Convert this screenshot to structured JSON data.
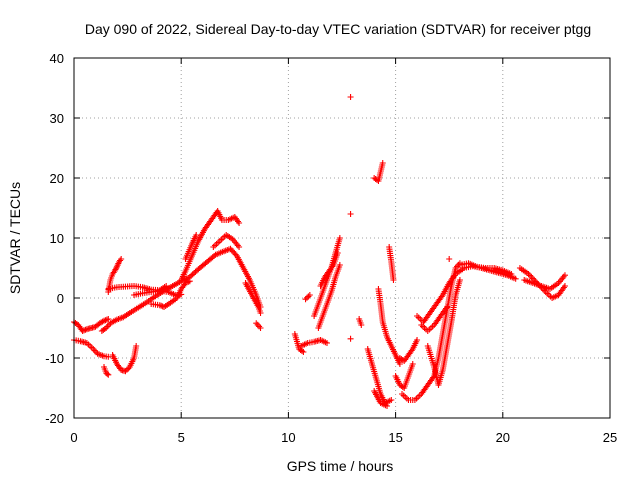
{
  "chart_data": {
    "type": "scatter",
    "title": "Day 090 of 2022, Sidereal Day-to-day VTEC variation (SDTVAR) for receiver ptgg",
    "xlabel": "GPS time / hours",
    "ylabel": "SDTVAR / TECUs",
    "xlim": [
      0,
      25
    ],
    "ylim": [
      -20,
      40
    ],
    "xticks": [
      "0",
      "5",
      "10",
      "15",
      "20",
      "25"
    ],
    "yticks": [
      "-20",
      "-10",
      "0",
      "10",
      "20",
      "30",
      "40"
    ],
    "grid": true,
    "marker": "+",
    "color": "#ff0000",
    "segments": [
      [
        [
          0.0,
          -4
        ],
        [
          0.2,
          -4.5
        ],
        [
          0.4,
          -5.5
        ],
        [
          0.6,
          -5.2
        ],
        [
          0.8,
          -5
        ],
        [
          1.0,
          -4.8
        ],
        [
          1.2,
          -4.2
        ],
        [
          1.4,
          -3.8
        ],
        [
          1.6,
          -3.5
        ]
      ],
      [
        [
          0.0,
          -7
        ],
        [
          0.3,
          -7.2
        ],
        [
          0.6,
          -7.5
        ],
        [
          0.9,
          -8.5
        ],
        [
          1.1,
          -9.3
        ],
        [
          1.4,
          -9.7
        ],
        [
          1.6,
          -9.8
        ]
      ],
      [
        [
          1.4,
          -11.5
        ],
        [
          1.5,
          -12.5
        ],
        [
          1.6,
          -12.8
        ]
      ],
      [
        [
          1.3,
          -5.5
        ],
        [
          1.5,
          -5.0
        ],
        [
          1.7,
          -4.2
        ],
        [
          2.0,
          -3.6
        ],
        [
          2.3,
          -3.2
        ],
        [
          2.6,
          -2.5
        ],
        [
          3.0,
          -1.6
        ],
        [
          3.4,
          -0.7
        ],
        [
          3.8,
          0.3
        ],
        [
          4.2,
          1.2
        ],
        [
          4.6,
          2.0
        ],
        [
          5.0,
          2.8
        ],
        [
          5.4,
          3.5
        ],
        [
          5.8,
          4.8
        ],
        [
          6.2,
          6.0
        ],
        [
          6.6,
          7.2
        ],
        [
          7.0,
          7.8
        ],
        [
          7.3,
          8.2
        ],
        [
          7.6,
          7.0
        ],
        [
          7.9,
          5.0
        ],
        [
          8.2,
          3.0
        ],
        [
          8.5,
          0.5
        ],
        [
          8.7,
          -1.5
        ]
      ],
      [
        [
          1.6,
          1.5
        ],
        [
          2.0,
          1.8
        ],
        [
          2.4,
          1.9
        ],
        [
          2.8,
          2.0
        ],
        [
          3.2,
          1.8
        ],
        [
          3.6,
          1.4
        ],
        [
          4.0,
          1.3
        ],
        [
          4.3,
          2.0
        ]
      ],
      [
        [
          1.6,
          1.0
        ],
        [
          1.7,
          3.0
        ],
        [
          1.8,
          4.0
        ],
        [
          1.9,
          4.5
        ],
        [
          2.0,
          5.2
        ],
        [
          2.1,
          6.0
        ],
        [
          2.2,
          6.5
        ]
      ],
      [
        [
          1.8,
          -9.5
        ],
        [
          2.0,
          -11.0
        ],
        [
          2.2,
          -12.0
        ],
        [
          2.4,
          -12.2
        ],
        [
          2.6,
          -11.5
        ],
        [
          2.8,
          -10.0
        ],
        [
          2.9,
          -8.0
        ]
      ],
      [
        [
          2.8,
          0.5
        ],
        [
          3.2,
          0.8
        ],
        [
          3.6,
          1.0
        ],
        [
          4.0,
          1.2
        ],
        [
          4.4,
          1.0
        ],
        [
          4.8,
          0.4
        ],
        [
          5.0,
          0.6
        ]
      ],
      [
        [
          3.6,
          -1.0
        ],
        [
          4.0,
          -1.2
        ],
        [
          4.2,
          -1.5
        ],
        [
          4.5,
          -0.8
        ],
        [
          4.8,
          0.0
        ],
        [
          5.0,
          1.5
        ],
        [
          5.2,
          2.5
        ],
        [
          5.4,
          2.8
        ]
      ],
      [
        [
          5.0,
          3.0
        ],
        [
          5.2,
          4.5
        ],
        [
          5.5,
          7.0
        ],
        [
          5.8,
          9.5
        ],
        [
          6.1,
          11.5
        ],
        [
          6.4,
          13.0
        ],
        [
          6.7,
          14.5
        ],
        [
          6.9,
          13.0
        ],
        [
          7.2,
          13.0
        ],
        [
          7.5,
          13.5
        ],
        [
          7.7,
          12.5
        ]
      ],
      [
        [
          5.2,
          6.5
        ],
        [
          5.5,
          9.0
        ],
        [
          5.7,
          10.5
        ]
      ],
      [
        [
          6.5,
          8.5
        ],
        [
          6.8,
          9.5
        ],
        [
          7.1,
          10.5
        ],
        [
          7.4,
          9.8
        ],
        [
          7.7,
          8.5
        ]
      ],
      [
        [
          8.0,
          2.5
        ],
        [
          8.3,
          0.5
        ],
        [
          8.6,
          -1.5
        ],
        [
          8.7,
          -2.5
        ]
      ],
      [
        [
          8.5,
          -4.2
        ],
        [
          8.7,
          -5.0
        ]
      ],
      [
        [
          10.3,
          -6.0
        ],
        [
          10.5,
          -8.5
        ],
        [
          10.7,
          -9.0
        ]
      ],
      [
        [
          10.6,
          -8.0
        ],
        [
          10.9,
          -7.5
        ],
        [
          11.2,
          -7.3
        ],
        [
          11.5,
          -7.0
        ],
        [
          11.8,
          -7.5
        ]
      ],
      [
        [
          10.8,
          -0.2
        ],
        [
          11.0,
          0.5
        ]
      ],
      [
        [
          11.2,
          -3.0
        ],
        [
          11.4,
          -1.0
        ],
        [
          11.6,
          1.0
        ],
        [
          11.8,
          3.0
        ],
        [
          12.0,
          5.0
        ],
        [
          12.2,
          7.5
        ],
        [
          12.4,
          10.0
        ]
      ],
      [
        [
          11.4,
          -5.0
        ],
        [
          11.6,
          -3.0
        ],
        [
          11.8,
          -1.0
        ],
        [
          12.0,
          1.0
        ],
        [
          12.2,
          3.5
        ],
        [
          12.4,
          5.5
        ]
      ],
      [
        [
          11.5,
          2.0
        ],
        [
          11.7,
          3.5
        ],
        [
          11.9,
          4.5
        ],
        [
          12.1,
          5.5
        ],
        [
          12.3,
          7.5
        ]
      ],
      [
        [
          12.9,
          33.5
        ]
      ],
      [
        [
          12.9,
          14.0
        ]
      ],
      [
        [
          12.9,
          -6.8
        ]
      ],
      [
        [
          13.3,
          -3.5
        ],
        [
          13.4,
          -4.5
        ]
      ],
      [
        [
          14.0,
          20.0
        ],
        [
          14.2,
          19.5
        ],
        [
          14.4,
          22.5
        ]
      ],
      [
        [
          13.7,
          -8.5
        ],
        [
          13.9,
          -11.0
        ],
        [
          14.1,
          -13.5
        ],
        [
          14.3,
          -16.0
        ],
        [
          14.5,
          -17.5
        ],
        [
          14.8,
          -17.0
        ]
      ],
      [
        [
          14.0,
          -15.5
        ],
        [
          14.3,
          -17.5
        ],
        [
          14.6,
          -18.0
        ]
      ],
      [
        [
          14.2,
          1.5
        ],
        [
          14.3,
          -1.0
        ],
        [
          14.4,
          -4.0
        ],
        [
          14.6,
          -6.5
        ],
        [
          14.8,
          -8.0
        ],
        [
          15.0,
          -9.5
        ],
        [
          15.2,
          -11.0
        ]
      ],
      [
        [
          14.7,
          8.5
        ],
        [
          14.8,
          6.0
        ],
        [
          14.9,
          3.0
        ]
      ],
      [
        [
          15.0,
          -13.0
        ],
        [
          15.2,
          -14.5
        ],
        [
          15.4,
          -15.0
        ],
        [
          15.6,
          -13.0
        ],
        [
          15.8,
          -11.0
        ]
      ],
      [
        [
          15.2,
          -10.0
        ],
        [
          15.4,
          -10.5
        ],
        [
          15.6,
          -9.5
        ],
        [
          15.8,
          -8.5
        ],
        [
          16.0,
          -7.0
        ]
      ],
      [
        [
          15.3,
          -16.0
        ],
        [
          15.6,
          -17.0
        ],
        [
          15.9,
          -17.0
        ],
        [
          16.2,
          -16.0
        ],
        [
          16.5,
          -14.5
        ],
        [
          16.8,
          -13.0
        ],
        [
          17.0,
          -10.0
        ],
        [
          17.2,
          -6.0
        ],
        [
          17.4,
          -2.0
        ],
        [
          17.6,
          2.0
        ],
        [
          17.8,
          5.0
        ],
        [
          18.0,
          5.8
        ]
      ],
      [
        [
          16.0,
          -3.0
        ],
        [
          16.3,
          -4.0
        ],
        [
          16.6,
          -2.5
        ],
        [
          16.9,
          -1.0
        ],
        [
          17.2,
          0.5
        ],
        [
          17.5,
          2.5
        ],
        [
          17.8,
          4.0
        ],
        [
          18.2,
          5.0
        ],
        [
          18.6,
          5.3
        ],
        [
          19.0,
          5.0
        ],
        [
          19.4,
          4.6
        ],
        [
          19.8,
          4.2
        ],
        [
          20.2,
          3.8
        ],
        [
          20.6,
          3.2
        ]
      ],
      [
        [
          16.5,
          -8.0
        ],
        [
          16.8,
          -11.5
        ],
        [
          17.0,
          -14.5
        ],
        [
          17.2,
          -12.0
        ],
        [
          17.4,
          -8.0
        ],
        [
          17.6,
          -4.0
        ],
        [
          17.8,
          0.5
        ],
        [
          18.0,
          3.0
        ]
      ],
      [
        [
          16.2,
          -4.5
        ],
        [
          16.5,
          -5.5
        ],
        [
          16.8,
          -4.5
        ],
        [
          17.1,
          -3.0
        ],
        [
          17.4,
          -1.5
        ]
      ],
      [
        [
          17.5,
          6.5
        ]
      ],
      [
        [
          18.0,
          5.5
        ],
        [
          18.4,
          5.8
        ],
        [
          18.8,
          5.2
        ],
        [
          19.2,
          5.0
        ],
        [
          19.6,
          5.0
        ],
        [
          20.0,
          4.6
        ],
        [
          20.4,
          4.0
        ]
      ],
      [
        [
          20.8,
          5.0
        ],
        [
          21.2,
          4.0
        ],
        [
          21.6,
          2.5
        ],
        [
          22.0,
          1.0
        ],
        [
          22.3,
          0.0
        ],
        [
          22.6,
          0.5
        ],
        [
          22.9,
          2.0
        ]
      ],
      [
        [
          21.0,
          3.0
        ],
        [
          21.4,
          2.5
        ],
        [
          21.8,
          2.0
        ],
        [
          22.2,
          1.5
        ],
        [
          22.6,
          2.5
        ],
        [
          22.9,
          3.8
        ]
      ]
    ]
  }
}
